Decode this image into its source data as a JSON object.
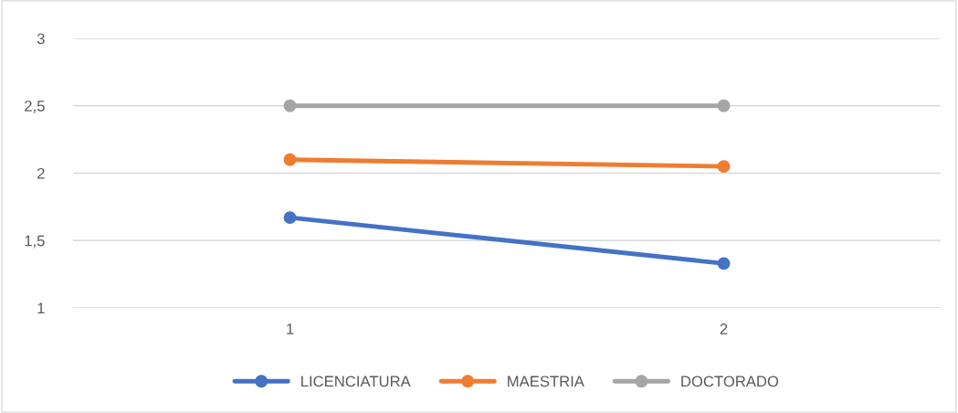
{
  "chart_data": {
    "type": "line",
    "categories": [
      "1",
      "2"
    ],
    "series": [
      {
        "name": "LICENCIATURA",
        "color": "#4472c4",
        "values": [
          1.67,
          1.33
        ]
      },
      {
        "name": "MAESTRIA",
        "color": "#ed7d31",
        "values": [
          2.1,
          2.05
        ]
      },
      {
        "name": "DOCTORADO",
        "color": "#a5a5a5",
        "values": [
          2.5,
          2.5
        ]
      }
    ],
    "ylim": [
      1,
      3
    ],
    "yticks": [
      1,
      {
        "value": 1.5,
        "label": "1,5"
      },
      2,
      {
        "value": 2.5,
        "label": "2,5"
      },
      3
    ],
    "grid": "y",
    "legend": "bottom",
    "marker": "circle",
    "line_style": "solid"
  }
}
